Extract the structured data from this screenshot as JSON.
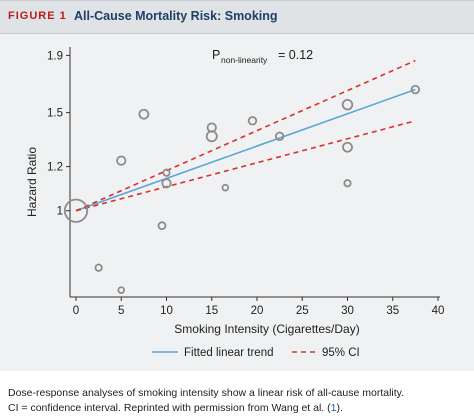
{
  "figure": {
    "label": "FIGURE 1",
    "title": "All-Cause Mortality Risk: Smoking"
  },
  "colors": {
    "label": "#b41f1f",
    "title": "#1e3f66",
    "fitted": "#5aa6d6",
    "ci": "#d8322e",
    "bubble": "#8c8c8c"
  },
  "chart_data": {
    "type": "scatter",
    "xlabel": "Smoking Intensity (Cigarettes/Day)",
    "ylabel": "Hazard Ratio",
    "xlim": [
      0,
      40
    ],
    "ylim": [
      0.7,
      2.0
    ],
    "y_scale": "log",
    "xticks": [
      0,
      5,
      10,
      15,
      20,
      25,
      30,
      35,
      40
    ],
    "yticks": [
      1,
      1.2,
      1.5,
      1.9
    ],
    "grid": false,
    "legend_position": "bottom",
    "annotation": {
      "prefix": "P",
      "subscript": "non-linearity",
      "value": " = 0.12"
    },
    "studies": {
      "points": [
        {
          "x": 0,
          "y": 1.0,
          "weight": 3.5
        },
        {
          "x": 2.5,
          "y": 0.79,
          "weight": 1.0
        },
        {
          "x": 5,
          "y": 0.72,
          "weight": 0.9
        },
        {
          "x": 5,
          "y": 1.23,
          "weight": 1.3
        },
        {
          "x": 7.5,
          "y": 1.49,
          "weight": 1.4
        },
        {
          "x": 9.5,
          "y": 0.94,
          "weight": 1.1
        },
        {
          "x": 10,
          "y": 1.12,
          "weight": 1.3
        },
        {
          "x": 10,
          "y": 1.17,
          "weight": 1.0
        },
        {
          "x": 15,
          "y": 1.41,
          "weight": 1.3
        },
        {
          "x": 15,
          "y": 1.36,
          "weight": 1.6
        },
        {
          "x": 16.5,
          "y": 1.1,
          "weight": 0.9
        },
        {
          "x": 19.5,
          "y": 1.45,
          "weight": 1.2
        },
        {
          "x": 22.5,
          "y": 1.36,
          "weight": 1.2
        },
        {
          "x": 30,
          "y": 1.55,
          "weight": 1.5
        },
        {
          "x": 30,
          "y": 1.3,
          "weight": 1.4
        },
        {
          "x": 30,
          "y": 1.12,
          "weight": 1.0
        },
        {
          "x": 37.5,
          "y": 1.65,
          "weight": 1.2
        }
      ]
    },
    "series": [
      {
        "name": "Fitted linear trend",
        "style": "solid",
        "x": [
          0,
          37.5
        ],
        "y": [
          1.0,
          1.65
        ]
      },
      {
        "name": "95% CI",
        "style": "dashed",
        "x": [
          0,
          37.5
        ],
        "y": [
          1.0,
          1.86
        ]
      },
      {
        "name": "95% CI",
        "style": "dashed",
        "x": [
          0,
          37.5
        ],
        "y": [
          1.0,
          1.45
        ]
      }
    ]
  },
  "caption": {
    "line1": "Dose-response analyses of smoking intensity show a linear risk of all-cause mortality.",
    "line2_text": "CI = confidence interval. Reprinted with permission from Wang et al. (",
    "line2_link": "1",
    "line2_end": ")."
  }
}
